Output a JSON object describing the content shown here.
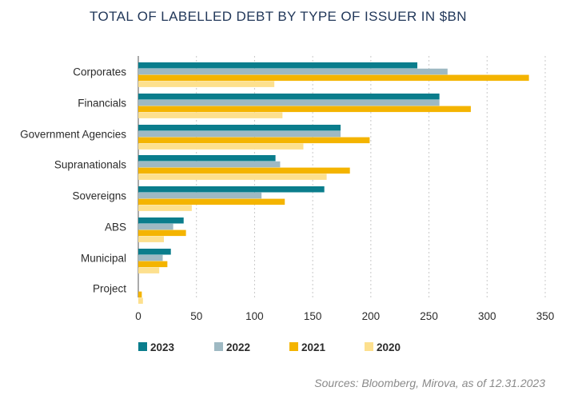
{
  "chart_data": {
    "type": "bar",
    "orientation": "horizontal",
    "title": "TOTAL OF LABELLED DEBT BY TYPE OF ISSUER IN $BN",
    "categories": [
      "Corporates",
      "Financials",
      "Government Agencies",
      "Supranationals",
      "Sovereigns",
      "ABS",
      "Municipal",
      "Project"
    ],
    "series": [
      {
        "name": "2023",
        "color": "#0a7d8c",
        "values": [
          240,
          259,
          174,
          118,
          160,
          39,
          28,
          0
        ]
      },
      {
        "name": "2022",
        "color": "#9eb9c3",
        "values": [
          266,
          259,
          174,
          122,
          106,
          30,
          21,
          0
        ]
      },
      {
        "name": "2021",
        "color": "#f4b400",
        "values": [
          336,
          286,
          199,
          182,
          126,
          41,
          25,
          3
        ]
      },
      {
        "name": "2020",
        "color": "#fde08e",
        "values": [
          117,
          124,
          142,
          162,
          46,
          22,
          18,
          4
        ]
      }
    ],
    "xlim": [
      0,
      350
    ],
    "xticks": [
      "0",
      "50",
      "100",
      "150",
      "200",
      "250",
      "300",
      "350"
    ],
    "grid": true,
    "legend_position": "bottom",
    "source": "Sources: Bloomberg, Mirova, as of 12.31.2023"
  }
}
